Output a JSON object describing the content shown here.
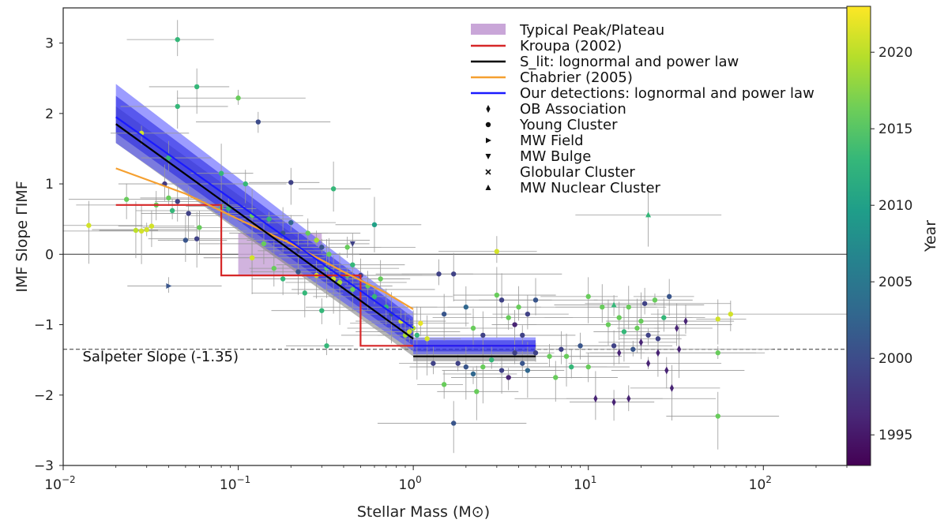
{
  "chart_data": {
    "type": "scatter",
    "title": "",
    "xlabel": "Stellar Mass (M⊙)",
    "ylabel": "IMF Slope ΓIMF",
    "xscale": "log",
    "xlim": [
      0.01,
      300
    ],
    "ylim": [
      -3,
      3.5
    ],
    "x_tick_values": [
      0.01,
      0.1,
      1,
      10,
      100
    ],
    "x_tick_labels": [
      {
        "base": "10",
        "exp": "−2"
      },
      {
        "base": "10",
        "exp": "−1"
      },
      {
        "base": "10",
        "exp": "0"
      },
      {
        "base": "10",
        "exp": "1"
      },
      {
        "base": "10",
        "exp": "2"
      }
    ],
    "y_ticks": [
      -3,
      -2,
      -1,
      0,
      1,
      2,
      3
    ],
    "y_tick_labels": [
      "−3",
      "−2",
      "−1",
      "0",
      "1",
      "2",
      "3"
    ],
    "colorbar": {
      "label": "Year",
      "range": [
        1993,
        2023
      ],
      "ticks": [
        1995,
        2000,
        2005,
        2010,
        2015,
        2020
      ],
      "colormap": [
        "#440154",
        "#482878",
        "#3e4989",
        "#31688e",
        "#26828e",
        "#1f9e89",
        "#35b779",
        "#6ece58",
        "#b5de2b",
        "#fde725"
      ]
    },
    "legend": {
      "placement": "top-right",
      "entries": [
        {
          "label": "Typical Peak/Plateau",
          "kind": "patch",
          "color": "#c9a6d8"
        },
        {
          "label": "Kroupa (2002)",
          "kind": "line",
          "color": "#d62728"
        },
        {
          "label": "S_lit: lognormal and power law",
          "kind": "line",
          "color": "#000000"
        },
        {
          "label": "Chabrier (2005)",
          "kind": "line",
          "color": "#f5a030"
        },
        {
          "label": "Our detections: lognormal and power law",
          "kind": "line",
          "color": "#1a1aff"
        },
        {
          "label": "OB Association",
          "kind": "marker",
          "marker": "diamond"
        },
        {
          "label": "Young Cluster",
          "kind": "marker",
          "marker": "circle"
        },
        {
          "label": "MW Field",
          "kind": "marker",
          "marker": "tri-right"
        },
        {
          "label": "MW Bulge",
          "kind": "marker",
          "marker": "tri-down"
        },
        {
          "label": "Globular Cluster",
          "kind": "marker",
          "marker": "x"
        },
        {
          "label": "MW Nuclear Cluster",
          "kind": "marker",
          "marker": "tri-up"
        }
      ]
    },
    "reference_lines": {
      "zero": 0,
      "salpeter": {
        "value": -1.35,
        "label": "Salpeter Slope (-1.35)"
      }
    },
    "peak_plateau_region": {
      "x": [
        0.1,
        0.3
      ],
      "y": [
        -0.3,
        0.3
      ],
      "label": "Typical Peak/Plateau"
    },
    "kroupa": {
      "name": "Kroupa (2002)",
      "x": [
        0.02,
        0.08,
        0.08,
        0.5,
        0.5,
        5
      ],
      "y": [
        0.7,
        0.7,
        -0.3,
        -0.3,
        -1.3,
        -1.3
      ]
    },
    "chabrier": {
      "name": "Chabrier (2005)",
      "x": [
        0.02,
        0.05,
        0.1,
        0.2,
        0.4,
        0.7,
        1.0
      ],
      "y": [
        1.22,
        0.86,
        0.5,
        0.15,
        -0.25,
        -0.55,
        -0.78
      ]
    },
    "s_lit": {
      "name": "S_lit: lognormal and power law",
      "x": [
        0.02,
        1.0,
        1.0,
        5.0
      ],
      "y": [
        1.85,
        -1.2,
        -1.45,
        -1.45
      ],
      "band_upper": [
        2.1,
        -0.95,
        -1.35,
        -1.35
      ],
      "band_lower": [
        1.58,
        -1.45,
        -1.52,
        -1.52
      ]
    },
    "our_detections": {
      "name": "Our detections: lognormal and power law",
      "x": [
        0.02,
        1.0,
        1.0,
        5.0
      ],
      "y": [
        1.95,
        -1.05,
        -1.3,
        -1.3
      ],
      "band_inner_upper": [
        2.25,
        -0.9,
        -1.22,
        -1.22
      ],
      "band_inner_lower": [
        1.72,
        -1.3,
        -1.38,
        -1.38
      ],
      "band_outer_upper": [
        2.42,
        -0.82,
        -1.18,
        -1.18
      ],
      "band_outer_lower": [
        1.58,
        -1.38,
        -1.42,
        -1.42
      ]
    },
    "points": [
      {
        "x": 0.045,
        "y": 3.05,
        "year": 2013,
        "m": "circle"
      },
      {
        "x": 0.058,
        "y": 2.38,
        "year": 2013,
        "m": "circle"
      },
      {
        "x": 0.045,
        "y": 2.1,
        "year": 2013,
        "m": "circle"
      },
      {
        "x": 0.1,
        "y": 2.22,
        "year": 2016,
        "m": "circle"
      },
      {
        "x": 0.13,
        "y": 1.88,
        "year": 2000,
        "m": "circle"
      },
      {
        "x": 0.028,
        "y": 1.72,
        "year": 2021,
        "m": "circle"
      },
      {
        "x": 0.04,
        "y": 1.37,
        "year": 2013,
        "m": "circle"
      },
      {
        "x": 0.038,
        "y": 1.0,
        "year": 1998,
        "m": "circle"
      },
      {
        "x": 0.08,
        "y": 1.15,
        "year": 2013,
        "m": "circle"
      },
      {
        "x": 0.11,
        "y": 1.0,
        "year": 2013,
        "m": "circle"
      },
      {
        "x": 0.2,
        "y": 1.02,
        "year": 1999,
        "m": "circle"
      },
      {
        "x": 0.35,
        "y": 0.93,
        "year": 2013,
        "m": "circle"
      },
      {
        "x": 0.023,
        "y": 0.78,
        "year": 2016,
        "m": "circle"
      },
      {
        "x": 0.04,
        "y": 0.8,
        "year": 2016,
        "m": "circle"
      },
      {
        "x": 0.045,
        "y": 0.75,
        "year": 1999,
        "m": "circle"
      },
      {
        "x": 0.034,
        "y": 0.7,
        "year": 2016,
        "m": "circle"
      },
      {
        "x": 0.052,
        "y": 0.58,
        "year": 1999,
        "m": "circle"
      },
      {
        "x": 0.042,
        "y": 0.62,
        "year": 2013,
        "m": "circle"
      },
      {
        "x": 0.014,
        "y": 0.41,
        "year": 2021,
        "m": "circle"
      },
      {
        "x": 0.028,
        "y": 0.33,
        "year": 2021,
        "m": "circle"
      },
      {
        "x": 0.03,
        "y": 0.35,
        "year": 2021,
        "m": "circle"
      },
      {
        "x": 0.032,
        "y": 0.4,
        "year": 2021,
        "m": "circle"
      },
      {
        "x": 0.026,
        "y": 0.34,
        "year": 2020,
        "m": "circle"
      },
      {
        "x": 0.06,
        "y": 0.38,
        "year": 2016,
        "m": "circle"
      },
      {
        "x": 0.058,
        "y": 0.22,
        "year": 1999,
        "m": "circle"
      },
      {
        "x": 0.05,
        "y": 0.2,
        "year": 2001,
        "m": "circle"
      },
      {
        "x": 0.088,
        "y": 0.65,
        "year": 2013,
        "m": "circle"
      },
      {
        "x": 0.12,
        "y": 0.55,
        "year": 2016,
        "m": "circle"
      },
      {
        "x": 0.15,
        "y": 0.5,
        "year": 2013,
        "m": "circle"
      },
      {
        "x": 0.18,
        "y": 0.3,
        "year": 2001,
        "m": "circle"
      },
      {
        "x": 0.2,
        "y": 0.45,
        "year": 2003,
        "m": "circle"
      },
      {
        "x": 0.25,
        "y": 0.3,
        "year": 2016,
        "m": "circle"
      },
      {
        "x": 0.28,
        "y": 0.2,
        "year": 2019,
        "m": "circle"
      },
      {
        "x": 0.3,
        "y": 0.1,
        "year": 2001,
        "m": "circle"
      },
      {
        "x": 0.33,
        "y": 0.0,
        "year": 2016,
        "m": "circle"
      },
      {
        "x": 0.12,
        "y": -0.05,
        "year": 2021,
        "m": "circle"
      },
      {
        "x": 0.14,
        "y": 0.15,
        "year": 2016,
        "m": "circle"
      },
      {
        "x": 0.16,
        "y": -0.2,
        "year": 2016,
        "m": "circle"
      },
      {
        "x": 0.18,
        "y": -0.35,
        "year": 2013,
        "m": "circle"
      },
      {
        "x": 0.22,
        "y": -0.25,
        "year": 2001,
        "m": "circle"
      },
      {
        "x": 0.24,
        "y": -0.55,
        "year": 2013,
        "m": "circle"
      },
      {
        "x": 0.28,
        "y": -0.3,
        "year": 2021,
        "m": "circle"
      },
      {
        "x": 0.32,
        "y": -0.2,
        "year": 2016,
        "m": "circle"
      },
      {
        "x": 0.35,
        "y": -0.35,
        "year": 2021,
        "m": "circle"
      },
      {
        "x": 0.38,
        "y": -0.4,
        "year": 2019,
        "m": "circle"
      },
      {
        "x": 0.42,
        "y": -0.3,
        "year": 2016,
        "m": "circle"
      },
      {
        "x": 0.45,
        "y": -0.5,
        "year": 2016,
        "m": "circle"
      },
      {
        "x": 0.5,
        "y": -0.3,
        "year": 1999,
        "m": "circle"
      },
      {
        "x": 0.55,
        "y": -0.45,
        "year": 2016,
        "m": "circle"
      },
      {
        "x": 0.6,
        "y": -0.6,
        "year": 2013,
        "m": "circle"
      },
      {
        "x": 0.65,
        "y": -0.35,
        "year": 2016,
        "m": "circle"
      },
      {
        "x": 0.7,
        "y": -0.75,
        "year": 2013,
        "m": "circle"
      },
      {
        "x": 0.75,
        "y": -0.85,
        "year": 2001,
        "m": "circle"
      },
      {
        "x": 0.6,
        "y": 0.42,
        "year": 2010,
        "m": "circle"
      },
      {
        "x": 0.42,
        "y": 0.1,
        "year": 2016,
        "m": "circle"
      },
      {
        "x": 0.45,
        "y": -0.15,
        "year": 2013,
        "m": "circle"
      },
      {
        "x": 0.3,
        "y": -0.8,
        "year": 2013,
        "m": "circle"
      },
      {
        "x": 0.32,
        "y": -1.3,
        "year": 2013,
        "m": "circle"
      },
      {
        "x": 0.12,
        "y": -0.05,
        "year": 2021,
        "m": "circle"
      },
      {
        "x": 0.85,
        "y": -0.95,
        "year": 2021,
        "m": "circle"
      },
      {
        "x": 0.9,
        "y": -1.15,
        "year": 2019,
        "m": "circle"
      },
      {
        "x": 0.95,
        "y": -1.1,
        "year": 2021,
        "m": "circle"
      },
      {
        "x": 1.0,
        "y": -1.05,
        "year": 2019,
        "m": "circle"
      },
      {
        "x": 1.05,
        "y": -1.15,
        "year": 2013,
        "m": "circle"
      },
      {
        "x": 1.1,
        "y": -0.98,
        "year": 2022,
        "m": "circle"
      },
      {
        "x": 1.2,
        "y": -1.2,
        "year": 2021,
        "m": "circle"
      },
      {
        "x": 1.4,
        "y": -0.28,
        "year": 1999,
        "m": "circle"
      },
      {
        "x": 1.7,
        "y": -0.28,
        "year": 1999,
        "m": "circle"
      },
      {
        "x": 1.5,
        "y": -0.85,
        "year": 2001,
        "m": "circle"
      },
      {
        "x": 2.0,
        "y": -0.75,
        "year": 2003,
        "m": "circle"
      },
      {
        "x": 2.2,
        "y": -1.05,
        "year": 2016,
        "m": "circle"
      },
      {
        "x": 2.5,
        "y": -1.15,
        "year": 1999,
        "m": "circle"
      },
      {
        "x": 3.0,
        "y": 0.04,
        "year": 2021,
        "m": "circle"
      },
      {
        "x": 3.0,
        "y": -0.58,
        "year": 2016,
        "m": "circle"
      },
      {
        "x": 3.2,
        "y": -0.65,
        "year": 1999,
        "m": "circle"
      },
      {
        "x": 3.5,
        "y": -0.9,
        "year": 2016,
        "m": "circle"
      },
      {
        "x": 3.8,
        "y": -1.0,
        "year": 1996,
        "m": "circle"
      },
      {
        "x": 4.0,
        "y": -0.75,
        "year": 2016,
        "m": "circle"
      },
      {
        "x": 4.2,
        "y": -1.15,
        "year": 1999,
        "m": "circle"
      },
      {
        "x": 4.5,
        "y": -0.85,
        "year": 1999,
        "m": "circle"
      },
      {
        "x": 5.0,
        "y": -0.65,
        "year": 2001,
        "m": "circle"
      },
      {
        "x": 1.3,
        "y": -1.55,
        "year": 1999,
        "m": "circle"
      },
      {
        "x": 1.8,
        "y": -1.55,
        "year": 1999,
        "m": "circle"
      },
      {
        "x": 2.0,
        "y": -1.6,
        "year": 2001,
        "m": "circle"
      },
      {
        "x": 2.2,
        "y": -1.7,
        "year": 2003,
        "m": "circle"
      },
      {
        "x": 2.5,
        "y": -1.6,
        "year": 2016,
        "m": "circle"
      },
      {
        "x": 2.8,
        "y": -1.5,
        "year": 2013,
        "m": "circle"
      },
      {
        "x": 3.2,
        "y": -1.65,
        "year": 1999,
        "m": "circle"
      },
      {
        "x": 3.5,
        "y": -1.75,
        "year": 1996,
        "m": "circle"
      },
      {
        "x": 3.8,
        "y": -1.4,
        "year": 1999,
        "m": "circle"
      },
      {
        "x": 4.2,
        "y": -1.55,
        "year": 2001,
        "m": "circle"
      },
      {
        "x": 4.5,
        "y": -1.65,
        "year": 2003,
        "m": "circle"
      },
      {
        "x": 5.0,
        "y": -1.4,
        "year": 1999,
        "m": "circle"
      },
      {
        "x": 1.5,
        "y": -1.85,
        "year": 2016,
        "m": "circle"
      },
      {
        "x": 2.3,
        "y": -1.95,
        "year": 2016,
        "m": "circle"
      },
      {
        "x": 1.7,
        "y": -2.4,
        "year": 2001,
        "m": "circle"
      },
      {
        "x": 6.0,
        "y": -1.45,
        "year": 2016,
        "m": "circle"
      },
      {
        "x": 6.5,
        "y": -1.75,
        "year": 2016,
        "m": "circle"
      },
      {
        "x": 7.0,
        "y": -1.35,
        "year": 1999,
        "m": "circle"
      },
      {
        "x": 7.5,
        "y": -1.45,
        "year": 2016,
        "m": "circle"
      },
      {
        "x": 8.0,
        "y": -1.6,
        "year": 2013,
        "m": "circle"
      },
      {
        "x": 9.0,
        "y": -1.3,
        "year": 2001,
        "m": "circle"
      },
      {
        "x": 10.0,
        "y": -1.6,
        "year": 2016,
        "m": "circle"
      },
      {
        "x": 10.0,
        "y": -0.6,
        "year": 2016,
        "m": "circle"
      },
      {
        "x": 12.0,
        "y": -0.75,
        "year": 2016,
        "m": "circle"
      },
      {
        "x": 13.0,
        "y": -1.0,
        "year": 2016,
        "m": "circle"
      },
      {
        "x": 14.0,
        "y": -1.3,
        "year": 1999,
        "m": "circle"
      },
      {
        "x": 15.0,
        "y": -0.9,
        "year": 2016,
        "m": "circle"
      },
      {
        "x": 16.0,
        "y": -1.1,
        "year": 2013,
        "m": "circle"
      },
      {
        "x": 17.0,
        "y": -0.75,
        "year": 2016,
        "m": "circle"
      },
      {
        "x": 18.0,
        "y": -1.35,
        "year": 2001,
        "m": "circle"
      },
      {
        "x": 19.0,
        "y": -1.05,
        "year": 2016,
        "m": "circle"
      },
      {
        "x": 20.0,
        "y": -0.95,
        "year": 2016,
        "m": "circle"
      },
      {
        "x": 21.0,
        "y": -0.7,
        "year": 1999,
        "m": "circle"
      },
      {
        "x": 22.0,
        "y": -1.15,
        "year": 1999,
        "m": "circle"
      },
      {
        "x": 24.0,
        "y": -0.65,
        "year": 2016,
        "m": "circle"
      },
      {
        "x": 25.0,
        "y": -1.2,
        "year": 1999,
        "m": "circle"
      },
      {
        "x": 27.0,
        "y": -0.9,
        "year": 2013,
        "m": "circle"
      },
      {
        "x": 29.0,
        "y": -0.6,
        "year": 2001,
        "m": "circle"
      },
      {
        "x": 55.0,
        "y": -0.92,
        "year": 2021,
        "m": "circle"
      },
      {
        "x": 65.0,
        "y": -0.85,
        "year": 2021,
        "m": "circle"
      },
      {
        "x": 55.0,
        "y": -1.4,
        "year": 2016,
        "m": "circle"
      },
      {
        "x": 55.0,
        "y": -2.3,
        "year": 2016,
        "m": "circle"
      },
      {
        "x": 11.0,
        "y": -2.05,
        "year": 1996,
        "m": "diamond"
      },
      {
        "x": 17.0,
        "y": -2.05,
        "year": 1996,
        "m": "diamond"
      },
      {
        "x": 14.0,
        "y": -2.1,
        "year": 1996,
        "m": "diamond"
      },
      {
        "x": 22.0,
        "y": -1.55,
        "year": 1996,
        "m": "diamond"
      },
      {
        "x": 25.0,
        "y": -1.4,
        "year": 1996,
        "m": "diamond"
      },
      {
        "x": 30.0,
        "y": -1.9,
        "year": 1996,
        "m": "diamond"
      },
      {
        "x": 28.0,
        "y": -1.65,
        "year": 1996,
        "m": "diamond"
      },
      {
        "x": 33.0,
        "y": -1.35,
        "year": 1996,
        "m": "diamond"
      },
      {
        "x": 32.0,
        "y": -1.05,
        "year": 1996,
        "m": "diamond"
      },
      {
        "x": 36.0,
        "y": -0.95,
        "year": 1996,
        "m": "diamond"
      },
      {
        "x": 20.0,
        "y": -1.25,
        "year": 1996,
        "m": "diamond"
      },
      {
        "x": 15.0,
        "y": -1.4,
        "year": 1996,
        "m": "diamond"
      },
      {
        "x": 0.04,
        "y": -0.45,
        "year": 2001,
        "m": "tri-right"
      },
      {
        "x": 0.45,
        "y": 0.15,
        "year": 1999,
        "m": "tri-down"
      },
      {
        "x": 0.22,
        "y": 0.05,
        "year": 1999,
        "m": "tri-down"
      },
      {
        "x": 22.0,
        "y": 0.56,
        "year": 2013,
        "m": "tri-up"
      },
      {
        "x": 14.0,
        "y": -0.72,
        "year": 2013,
        "m": "tri-up"
      },
      {
        "x": 0.08,
        "y": 0.68,
        "year": 2016,
        "m": "x"
      }
    ]
  }
}
